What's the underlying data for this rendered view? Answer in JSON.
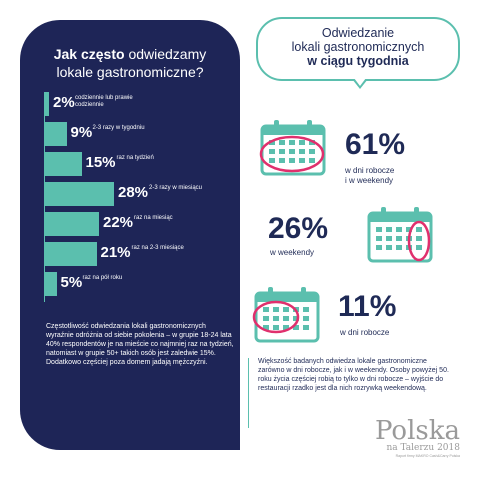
{
  "left_panel": {
    "title_bold": "Jak często",
    "title_rest": "odwiedzamy",
    "title_line2": "lokale gastronomiczne?",
    "description": "Częstotliwość odwiedzania lokali gastronomicznych wyraźnie odróżnia od siebie pokolenia – w grupie 18-24 lata 40% respondentów je na mieście co najmniej raz na tydzień, natomiast w grupie 50+ takich osób jest zaledwie 15%. Dodatkowo częściej poza domem jadają mężczyźni."
  },
  "chart_data": [
    {
      "type": "bar",
      "orientation": "horizontal",
      "title": "Jak często odwiedzamy lokale gastronomiczne?",
      "categories": [
        "codziennie lub prawie codziennie",
        "2-3 razy w tygodniu",
        "raz na tydzień",
        "2-3 razy w miesiącu",
        "raz na miesiąc",
        "raz na 2-3 miesiące",
        "raz na pół roku"
      ],
      "values": [
        2,
        9,
        15,
        28,
        22,
        21,
        5
      ],
      "value_labels": [
        "2%",
        "9%",
        "15%",
        "28%",
        "22%",
        "21%",
        "5%"
      ],
      "unit": "%"
    },
    {
      "type": "table",
      "title": "Odwiedzanie lokali gastronomicznych w ciągu tygodnia",
      "rows": [
        {
          "value": 61,
          "label": "w dni robocze i w weekendy"
        },
        {
          "value": 26,
          "label": "w weekendy"
        },
        {
          "value": 11,
          "label": "w dni robocze"
        }
      ],
      "unit": "%"
    }
  ],
  "bubble": {
    "line1": "Odwiedzanie",
    "line2": "lokali gastronomicznych",
    "line3": "w ciągu tygodnia"
  },
  "stats": [
    {
      "pct": "61%",
      "label1": "w dni robocze",
      "label2": "i w weekendy"
    },
    {
      "pct": "26%",
      "label1": "w weekendy",
      "label2": ""
    },
    {
      "pct": "11%",
      "label1": "w dni robocze",
      "label2": ""
    }
  ],
  "right_description": "Większość badanych odwiedza lokale gastronomiczne zarówno w dni robocze, jak i w weekendy. Osoby powyżej 50. roku życia częściej robią to tylko w dni robocze – wyjście do restauracji rzadko jest dla nich rozrywką weekendową.",
  "logo": {
    "main": "Polska",
    "sub": "na Talerzu 2018",
    "note": "Raport firmy MAKRO Cash&Carry Polska"
  },
  "colors": {
    "navy": "#1e2557",
    "teal": "#5bbfae",
    "pink": "#e0306d"
  },
  "icons": [
    "calendar-icon"
  ]
}
